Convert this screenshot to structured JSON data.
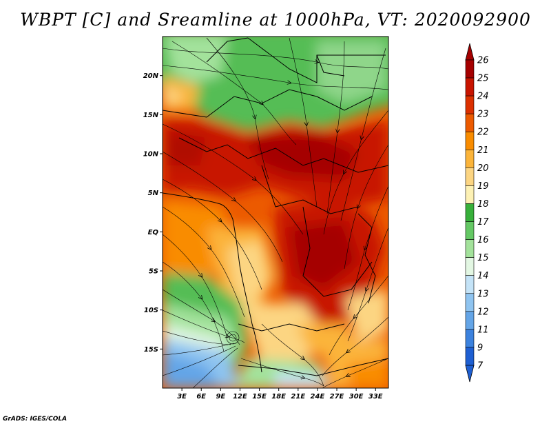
{
  "title": "WBPT [C] and Sreamline at 1000hPa, VT: 2020092900",
  "credit": "GrADS: IGES/COLA",
  "map": {
    "lat_labels": [
      "20N",
      "15N",
      "10N",
      "5N",
      "EQ",
      "5S",
      "10S",
      "15S"
    ],
    "lat_values": [
      20,
      15,
      10,
      5,
      0,
      -5,
      -10,
      -15
    ],
    "lon_labels": [
      "3E",
      "6E",
      "9E",
      "12E",
      "15E",
      "18E",
      "21E",
      "24E",
      "27E",
      "30E",
      "33E"
    ],
    "lon_values": [
      3,
      6,
      9,
      12,
      15,
      18,
      21,
      24,
      27,
      30,
      33
    ],
    "lat_range": [
      -20,
      25
    ],
    "lon_range": [
      0,
      35
    ]
  },
  "colorbar": {
    "labels": [
      "26",
      "25",
      "24",
      "23",
      "22",
      "21",
      "20",
      "19",
      "18",
      "17",
      "16",
      "15",
      "14",
      "13",
      "12",
      "11",
      "9",
      "7"
    ],
    "colors": [
      "#a50000",
      "#c81400",
      "#dc3000",
      "#ec5a00",
      "#f98c00",
      "#fbb43a",
      "#fcd582",
      "#fdf1b4",
      "#37b03a",
      "#64c864",
      "#a3e29b",
      "#e3f7e3",
      "#c4e3f7",
      "#8fc4f0",
      "#64a5e7",
      "#3c82de",
      "#1e5fd2"
    ]
  }
}
